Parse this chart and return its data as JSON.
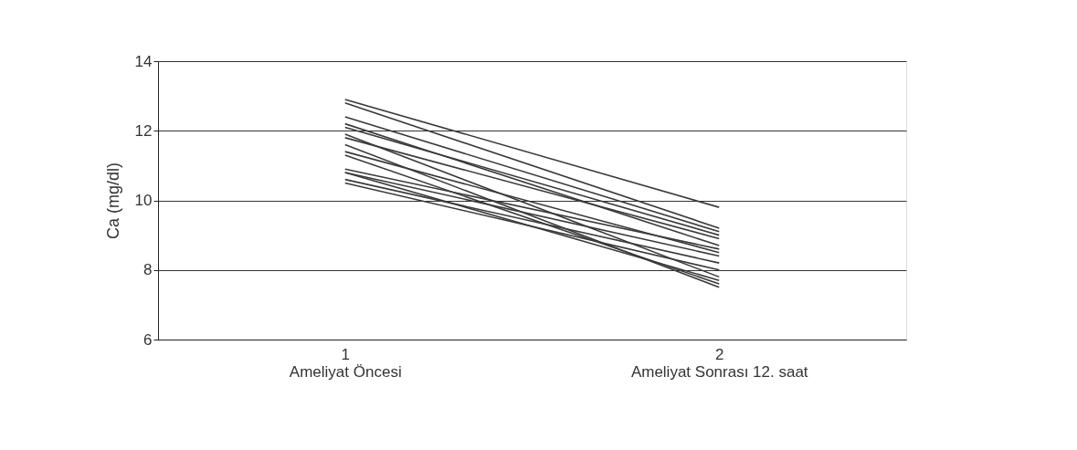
{
  "chart_data": {
    "type": "line",
    "ylabel": "Ca (mg/dl)",
    "categories": [
      "1\nAmeliyat Öncesi",
      "2\nAmeliyat Sonrası 12. saat"
    ],
    "ylim": [
      6,
      14
    ],
    "yticks": [
      6,
      8,
      10,
      12,
      14
    ],
    "grid": "y",
    "legend": false,
    "marker": "none",
    "line_style": "solid",
    "series": [
      {
        "color": "#3a3a3a",
        "values": [
          12.9,
          9.8
        ]
      },
      {
        "color": "#3a3a3a",
        "values": [
          12.8,
          9.2
        ]
      },
      {
        "color": "#3a3a3a",
        "values": [
          12.4,
          9.1
        ]
      },
      {
        "color": "#3a3a3a",
        "values": [
          12.2,
          8.7
        ]
      },
      {
        "color": "#3a3a3a",
        "values": [
          12.1,
          9.0
        ]
      },
      {
        "color": "#3a3a3a",
        "values": [
          11.9,
          7.8
        ]
      },
      {
        "color": "#3a3a3a",
        "values": [
          11.8,
          8.9
        ]
      },
      {
        "color": "#3a3a3a",
        "values": [
          11.6,
          7.5
        ]
      },
      {
        "color": "#3a3a3a",
        "values": [
          11.4,
          8.5
        ]
      },
      {
        "color": "#3a3a3a",
        "values": [
          11.3,
          7.6
        ]
      },
      {
        "color": "#3a3a3a",
        "values": [
          10.9,
          8.6
        ]
      },
      {
        "color": "#3a3a3a",
        "values": [
          10.8,
          8.4
        ]
      },
      {
        "color": "#3a3a3a",
        "values": [
          10.8,
          7.7
        ]
      },
      {
        "color": "#3a3a3a",
        "values": [
          10.6,
          8.2
        ]
      },
      {
        "color": "#3a3a3a",
        "values": [
          10.5,
          8.0
        ]
      }
    ]
  }
}
